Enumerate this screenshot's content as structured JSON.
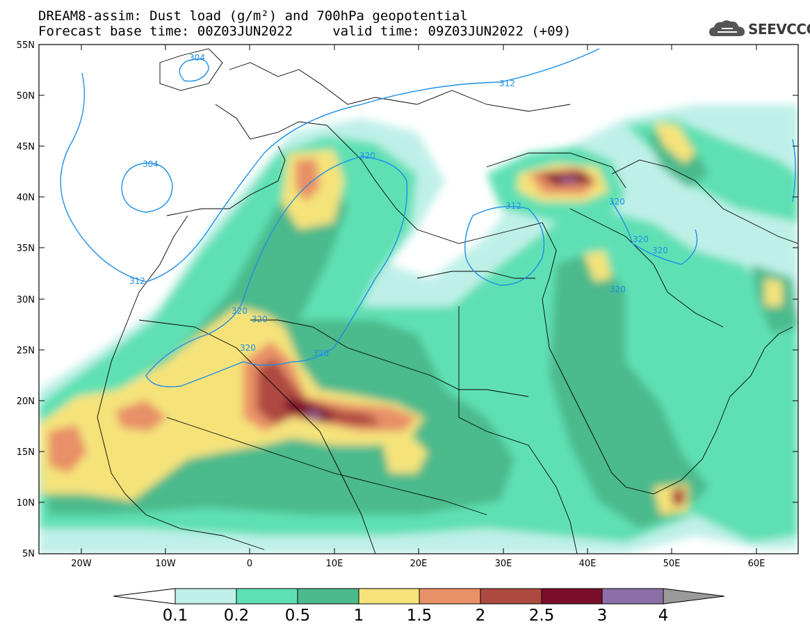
{
  "title": {
    "line1": "DREAM8-assim: Dust load (g/m²) and 700hPa geopotential",
    "line2": "Forecast base time: 00Z03JUN2022     valid time: 09Z03JUN2022 (+09)"
  },
  "logo": {
    "text": "SEEVCCC",
    "icon": "cloud-icon"
  },
  "map": {
    "lat_labels": [
      "55N",
      "50N",
      "45N",
      "40N",
      "35N",
      "30N",
      "25N",
      "20N",
      "15N",
      "10N",
      "5N"
    ],
    "lon_labels": [
      "20W",
      "10W",
      "0",
      "10E",
      "20E",
      "30E",
      "40E",
      "50E",
      "60E"
    ],
    "contour_labels": [
      "304",
      "304",
      "312",
      "312",
      "312",
      "320",
      "320",
      "320",
      "320",
      "320",
      "320",
      "320",
      "320",
      "320"
    ]
  },
  "colorbar": {
    "ticks": [
      "0.1",
      "0.2",
      "0.5",
      "1",
      "1.5",
      "2",
      "2.5",
      "3",
      "4"
    ],
    "colors": [
      "#ffffff",
      "#bff0e8",
      "#5ee0b4",
      "#4cba8c",
      "#f5e37a",
      "#e89068",
      "#ad4a40",
      "#7a0e2a",
      "#8e6ea8",
      "#9a9a9a"
    ]
  }
}
